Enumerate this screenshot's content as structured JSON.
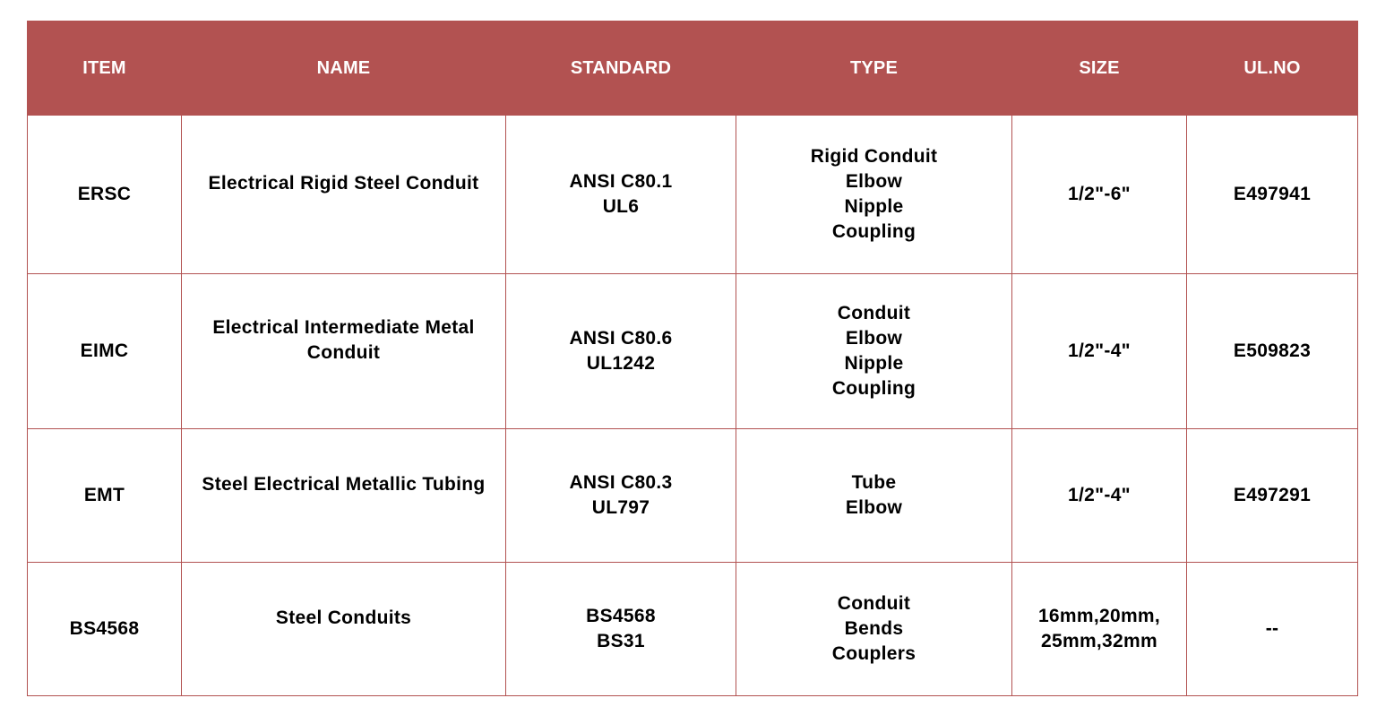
{
  "colors": {
    "header_bg": "#b25251",
    "border": "#b25251",
    "header_text": "#ffffff"
  },
  "headers": [
    "ITEM",
    "NAME",
    "STANDARD",
    "TYPE",
    "SIZE",
    "UL.NO"
  ],
  "rows": [
    {
      "item": "ERSC",
      "name": [
        "Electrical Rigid Steel Conduit"
      ],
      "standard": [
        "ANSI C80.1",
        "UL6"
      ],
      "type": [
        "Rigid Conduit",
        "Elbow",
        "Nipple",
        "Coupling"
      ],
      "size": [
        "1/2\"-6\""
      ],
      "ul_no": "E497941"
    },
    {
      "item": "EIMC",
      "name": [
        "Electrical Intermediate Metal",
        "Conduit"
      ],
      "standard": [
        "ANSI C80.6",
        "UL1242"
      ],
      "type": [
        "Conduit",
        "Elbow",
        "Nipple",
        "Coupling"
      ],
      "size": [
        "1/2\"-4\""
      ],
      "ul_no": "E509823"
    },
    {
      "item": "EMT",
      "name": [
        "Steel Electrical Metallic Tubing"
      ],
      "standard": [
        "ANSI C80.3",
        "UL797"
      ],
      "type": [
        "Tube",
        "Elbow"
      ],
      "size": [
        "1/2\"-4\""
      ],
      "ul_no": "E497291"
    },
    {
      "item": "BS4568",
      "name": [
        "Steel Conduits"
      ],
      "standard": [
        "BS4568",
        "BS31"
      ],
      "type": [
        "Conduit",
        "Bends",
        "Couplers"
      ],
      "size": [
        "16mm,20mm,",
        "25mm,32mm"
      ],
      "ul_no": "--"
    }
  ]
}
